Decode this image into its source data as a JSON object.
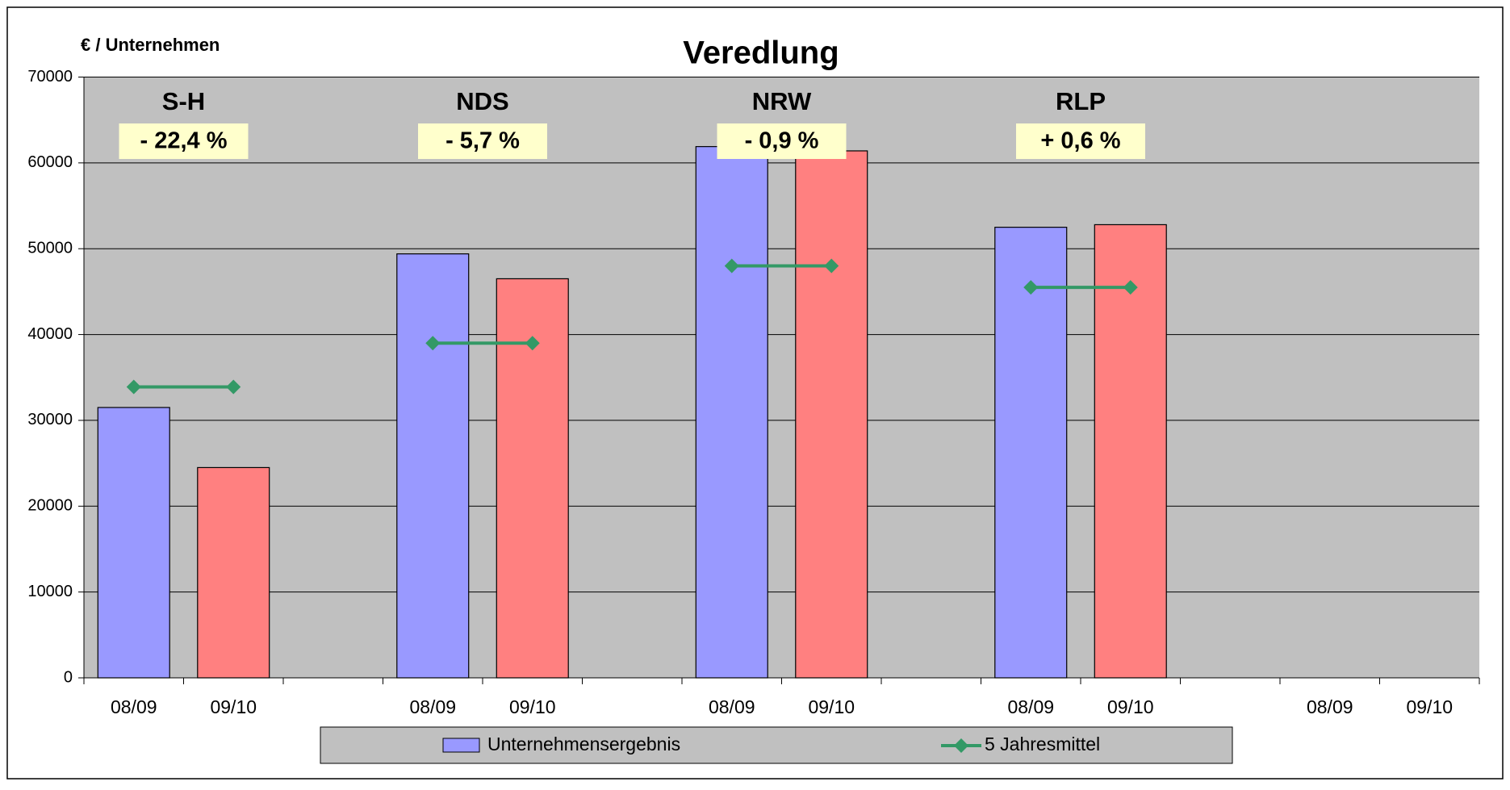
{
  "chart_data": {
    "type": "bar",
    "title": "Veredlung",
    "y_axis_label": "€ / Unternehmen",
    "categories": [
      "08/09",
      "09/10",
      null,
      "08/09",
      "09/10",
      null,
      "08/09",
      "09/10",
      null,
      "08/09",
      "09/10",
      null,
      "08/09",
      "09/10"
    ],
    "series": [
      {
        "name": "Unternehmensergebnis",
        "type": "bar",
        "color": "#9999ff",
        "point_colors": [
          "#9999ff",
          "#ff8080",
          null,
          "#9999ff",
          "#ff8080",
          null,
          "#9999ff",
          "#ff8080",
          null,
          "#9999ff",
          "#ff8080",
          null,
          "#9999ff",
          "#ff8080"
        ],
        "values": [
          31500,
          24500,
          null,
          49400,
          46500,
          null,
          61900,
          61400,
          null,
          52500,
          52800,
          null,
          null,
          null
        ]
      },
      {
        "name": "5 Jahresmittel",
        "type": "line",
        "color": "#339966",
        "values": [
          33900,
          33900,
          null,
          39000,
          39000,
          null,
          48000,
          48000,
          null,
          45500,
          45500,
          null,
          null,
          null
        ]
      }
    ],
    "annotations": [
      {
        "label": "S-H",
        "change": "- 22,4 %"
      },
      {
        "label": "NDS",
        "change": "- 5,7 %"
      },
      {
        "label": "NRW",
        "change": "- 0,9 %"
      },
      {
        "label": "RLP",
        "change": "+ 0,6 %"
      }
    ],
    "ylim": [
      0,
      70000
    ],
    "yticks": [
      0,
      10000,
      20000,
      30000,
      40000,
      50000,
      60000,
      70000
    ],
    "grid": true,
    "legend": "bottom"
  }
}
